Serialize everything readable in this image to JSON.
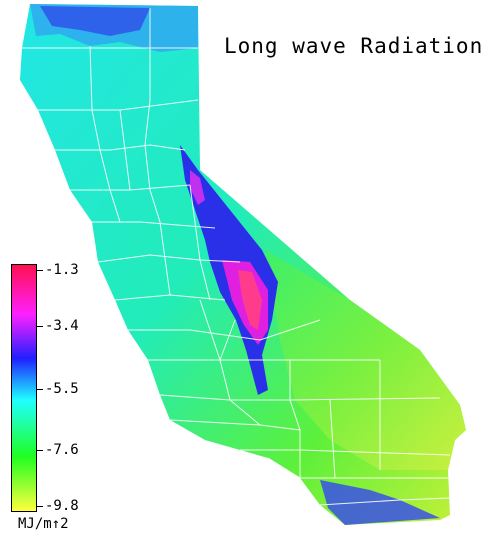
{
  "map": {
    "title": "Long wave Radiation",
    "units": "MJ/m↑2",
    "region": "California",
    "colorbar": {
      "ticks": [
        "-1.3",
        "-3.4",
        "-5.5",
        "-7.6",
        "-9.8"
      ],
      "values": [
        -1.3,
        -3.4,
        -5.5,
        -7.6,
        -9.8
      ],
      "colors": [
        "#ff1050",
        "#ff20ff",
        "#2020ff",
        "#20ffff",
        "#20ff20",
        "#ffff40"
      ]
    }
  }
}
